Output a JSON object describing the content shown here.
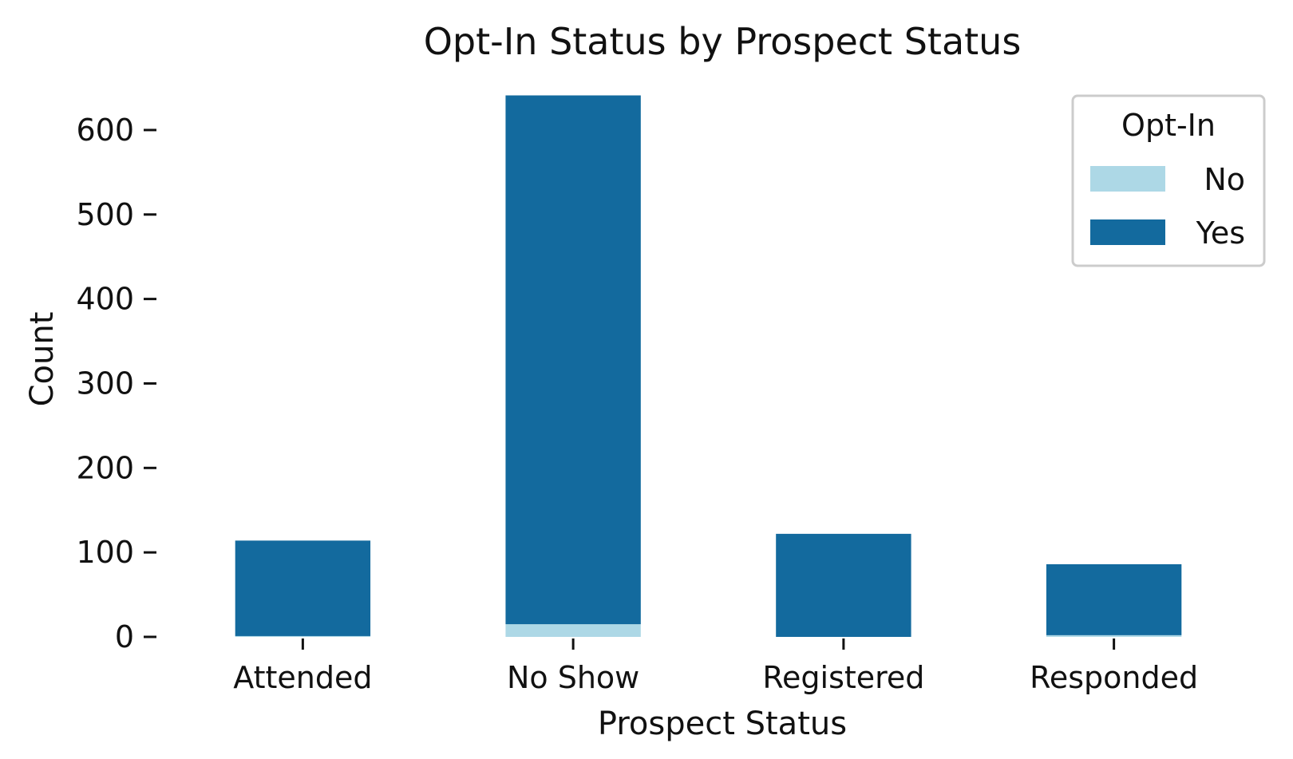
{
  "chart_data": {
    "type": "bar",
    "stacked": true,
    "title": "Opt-In Status by Prospect Status",
    "xlabel": "Prospect Status",
    "ylabel": "Count",
    "categories": [
      "Attended",
      "No Show",
      "Registered",
      "Responded"
    ],
    "series": [
      {
        "name": "No",
        "values": [
          1,
          15,
          0,
          2
        ],
        "color": "#add8e6"
      },
      {
        "name": "Yes",
        "values": [
          113,
          626,
          122,
          84
        ],
        "color": "#136a9e"
      }
    ],
    "ylim": [
      0,
      650
    ],
    "yticks": [
      0,
      100,
      200,
      300,
      400,
      500,
      600
    ],
    "legend": {
      "title": "Opt-In",
      "placement": "top-right"
    },
    "grid": false
  }
}
